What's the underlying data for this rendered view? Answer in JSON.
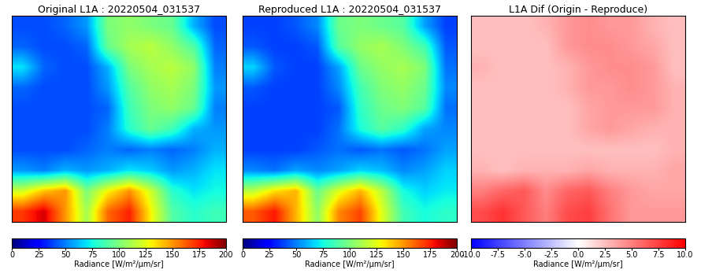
{
  "chart_data": [
    {
      "type": "heatmap",
      "title": "Original L1A : 20220504_031537",
      "color": "jet",
      "tick_labels": false,
      "cells": [
        [
          40,
          40,
          45,
          55,
          100,
          105,
          100,
          95,
          60,
          40
        ],
        [
          45,
          40,
          40,
          45,
          95,
          110,
          115,
          105,
          90,
          45
        ],
        [
          70,
          45,
          40,
          40,
          60,
          100,
          110,
          115,
          105,
          50
        ],
        [
          45,
          40,
          40,
          40,
          55,
          90,
          105,
          110,
          100,
          55
        ],
        [
          40,
          40,
          40,
          40,
          45,
          85,
          100,
          105,
          95,
          50
        ],
        [
          40,
          40,
          40,
          40,
          50,
          80,
          95,
          85,
          60,
          55
        ],
        [
          40,
          40,
          40,
          45,
          50,
          45,
          50,
          45,
          50,
          60
        ],
        [
          55,
          50,
          60,
          55,
          60,
          70,
          65,
          55,
          60,
          70
        ],
        [
          120,
          140,
          150,
          100,
          130,
          150,
          120,
          80,
          70,
          75
        ],
        [
          170,
          185,
          150,
          110,
          160,
          175,
          130,
          90,
          80,
          85
        ]
      ],
      "colorbar_range": [
        0,
        200
      ],
      "colorbar_ticks": [
        0,
        25,
        50,
        75,
        100,
        125,
        150,
        175,
        200
      ],
      "colorbar_label": "Radiance [W/m²/μm/sr]"
    },
    {
      "type": "heatmap",
      "title": "Reproduced L1A : 20220504_031537",
      "color": "jet",
      "tick_labels": false,
      "cells": [
        [
          37.5,
          37.5,
          42.5,
          52,
          96,
          100.5,
          96,
          91,
          57,
          37.5
        ],
        [
          42.5,
          37.5,
          37.5,
          42.5,
          91,
          105.5,
          110.5,
          101,
          86.5,
          42.5
        ],
        [
          67,
          42.5,
          37.5,
          37.5,
          57,
          96,
          105.5,
          110.5,
          101,
          47.5
        ],
        [
          42.5,
          37.5,
          37.5,
          37.5,
          52,
          86,
          101,
          105.5,
          96,
          52
        ],
        [
          37.5,
          37.5,
          37.5,
          37.5,
          42.5,
          81.5,
          96,
          101,
          91,
          47
        ],
        [
          37.5,
          37.5,
          37.5,
          37.5,
          47.5,
          76.5,
          91,
          81.5,
          57,
          52
        ],
        [
          37.5,
          37.5,
          37.5,
          42.5,
          47.5,
          42.5,
          47.5,
          42.5,
          47.5,
          57
        ],
        [
          52,
          47.5,
          57,
          52,
          57,
          66.5,
          62,
          52,
          57,
          66.5
        ],
        [
          115,
          134,
          143.5,
          95.5,
          124,
          143.5,
          115,
          76,
          66.5,
          71.5
        ],
        [
          163,
          177,
          143.5,
          105,
          153,
          167.5,
          124.5,
          86,
          76,
          81
        ]
      ],
      "colorbar_range": [
        0,
        200
      ],
      "colorbar_ticks": [
        0,
        25,
        50,
        75,
        100,
        125,
        150,
        175,
        200
      ],
      "colorbar_label": "Radiance [W/m²/μm/sr]"
    },
    {
      "type": "heatmap",
      "title": "L1A Dif (Origin - Reproduce)",
      "color": "bwr",
      "tick_labels": false,
      "cells": [
        [
          2.5,
          2.5,
          2.5,
          3,
          4,
          4.5,
          4,
          4,
          3,
          2.5
        ],
        [
          2.5,
          2.5,
          2.5,
          2.5,
          4,
          4.5,
          4.5,
          4,
          3.5,
          2.5
        ],
        [
          3,
          2.5,
          2.5,
          2.5,
          3,
          4,
          4.5,
          4.5,
          4,
          2.5
        ],
        [
          2.5,
          2.5,
          2.5,
          2.5,
          3,
          4,
          4,
          4.5,
          4,
          3
        ],
        [
          2.5,
          2.5,
          2.5,
          2.5,
          2.5,
          3.5,
          4,
          4,
          4,
          3
        ],
        [
          2.5,
          2.5,
          2.5,
          2.5,
          2.5,
          3.5,
          4,
          3.5,
          3,
          3
        ],
        [
          2.5,
          2.5,
          2.5,
          2.5,
          2.5,
          2.5,
          2.5,
          2.5,
          2.5,
          3
        ],
        [
          3,
          2.5,
          3,
          3,
          3,
          3.5,
          3,
          3,
          3,
          3.5
        ],
        [
          5,
          6,
          6.5,
          4.5,
          6,
          6.5,
          5,
          4,
          3.5,
          3.5
        ],
        [
          7,
          8,
          6.5,
          5,
          7,
          7.5,
          5.5,
          4,
          4,
          4
        ]
      ],
      "colorbar_range": [
        -10,
        10
      ],
      "colorbar_ticks": [
        {
          "value": -10,
          "label": "-10.0"
        },
        {
          "value": -7.5,
          "label": "-7.5"
        },
        {
          "value": -5,
          "label": "-5.0"
        },
        {
          "value": -2.5,
          "label": "-2.5"
        },
        {
          "value": 0,
          "label": "0.0"
        },
        {
          "value": 2.5,
          "label": "2.5"
        },
        {
          "value": 5,
          "label": "5.0"
        },
        {
          "value": 7.5,
          "label": "7.5"
        },
        {
          "value": 10,
          "label": "10.0"
        }
      ],
      "colorbar_label": "Radiance [W/m²/μm/sr]"
    }
  ]
}
